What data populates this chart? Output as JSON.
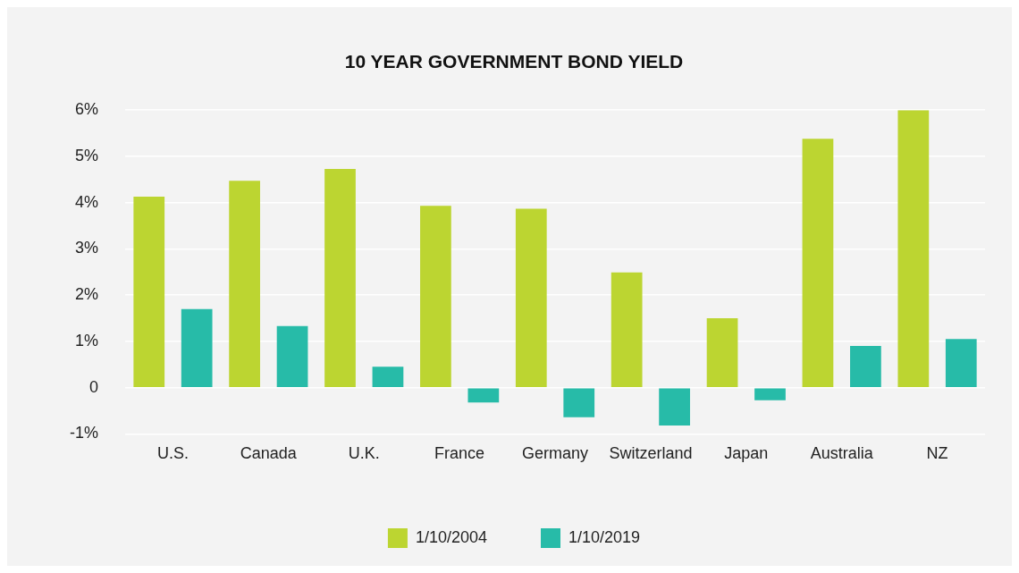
{
  "chart_data": {
    "type": "bar",
    "title": "10 YEAR GOVERNMENT BOND YIELD",
    "categories": [
      "U.S.",
      "Canada",
      "U.K.",
      "France",
      "Germany",
      "Switzerland",
      "Japan",
      "Australia",
      "NZ"
    ],
    "series": [
      {
        "name": "1/10/2004",
        "color": "#bcd531",
        "values": [
          4.13,
          4.47,
          4.73,
          3.93,
          3.87,
          2.49,
          1.5,
          5.38,
          6.0
        ]
      },
      {
        "name": "1/10/2019",
        "color": "#27bba8",
        "values": [
          1.7,
          1.33,
          0.45,
          -0.32,
          -0.64,
          -0.82,
          -0.27,
          0.9,
          1.05
        ]
      }
    ],
    "ylim": [
      -1,
      6
    ],
    "yticks": [
      {
        "value": -1,
        "label": "-1%"
      },
      {
        "value": 0,
        "label": "0"
      },
      {
        "value": 1,
        "label": "1%"
      },
      {
        "value": 2,
        "label": "2%"
      },
      {
        "value": 3,
        "label": "3%"
      },
      {
        "value": 4,
        "label": "4%"
      },
      {
        "value": 5,
        "label": "5%"
      },
      {
        "value": 6,
        "label": "6%"
      }
    ],
    "grid": "y",
    "legend": "bottom"
  }
}
